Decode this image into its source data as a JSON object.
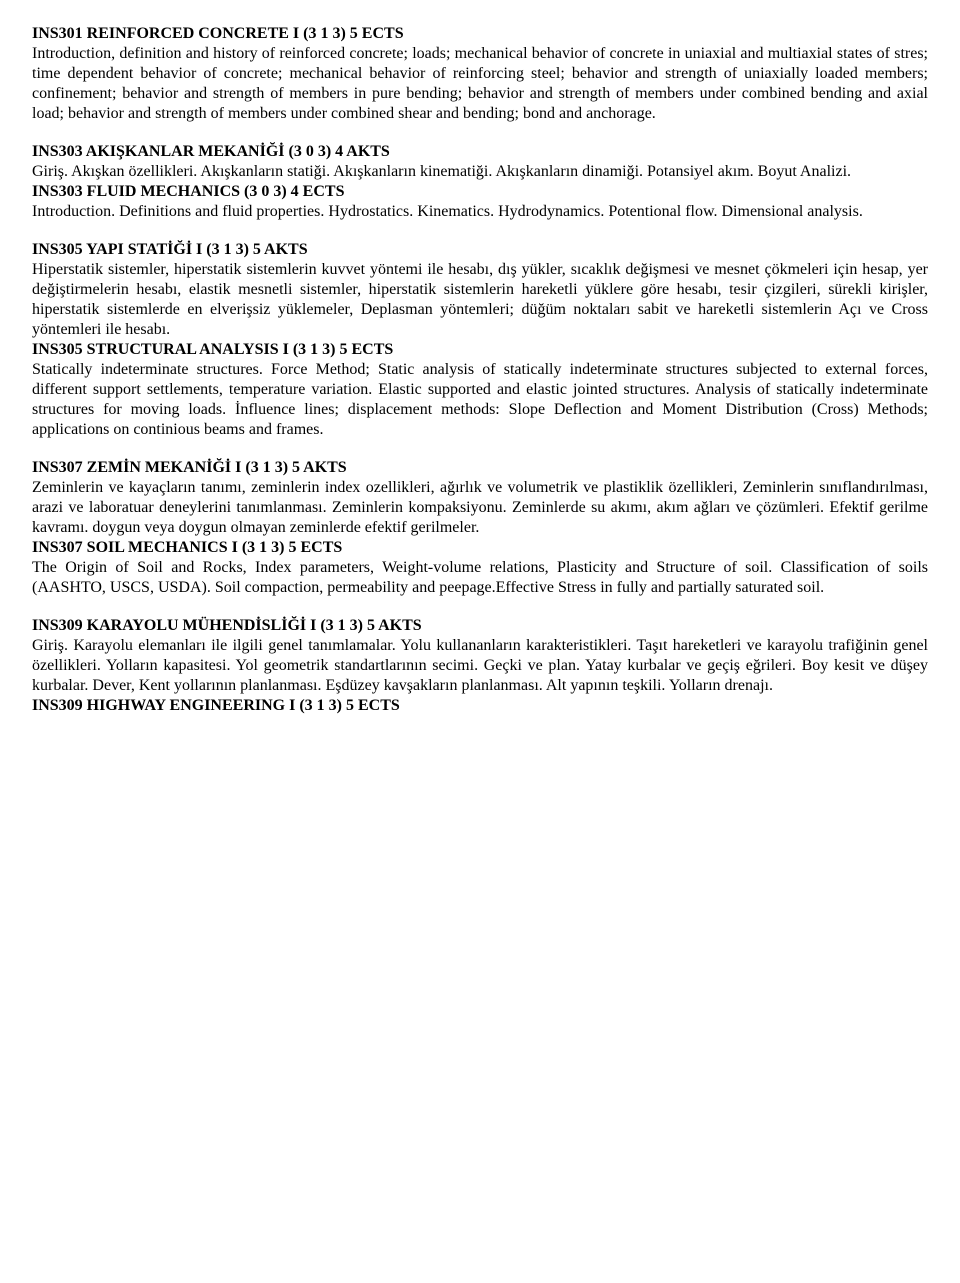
{
  "sections": [
    {
      "blocks": [
        {
          "type": "heading",
          "text": "INS301 REINFORCED CONCRETE I (3  1  3) 5 ECTS"
        },
        {
          "type": "para",
          "text": "Introduction, definition and history of reinforced concrete; loads; mechanical behavior of concrete in uniaxial and multiaxial states of stres; time dependent behavior of concrete; mechanical behavior of reinforcing steel; behavior and strength of uniaxially loaded members; confinement; behavior and strength of members in pure bending; behavior and strength of members under combined bending and axial load; behavior and strength of members under combined shear and bending; bond and anchorage."
        }
      ]
    },
    {
      "blocks": [
        {
          "type": "heading",
          "text": "INS303 AKIŞKANLAR MEKANİĞİ (3  0  3) 4 AKTS"
        },
        {
          "type": "para",
          "text": "Giriş. Akışkan özellikleri. Akışkanların statiği. Akışkanların kinematiği. Akışkanların dinamiği. Potansiyel akım. Boyut Analizi."
        },
        {
          "type": "heading",
          "text": "INS303 FLUID MECHANICS (3  0  3) 4 ECTS"
        },
        {
          "type": "para",
          "text": "Introduction. Definitions and fluid properties. Hydrostatics. Kinematics. Hydrodynamics. Potentional flow. Dimensional analysis."
        }
      ]
    },
    {
      "blocks": [
        {
          "type": "heading",
          "text": "INS305 YAPI STATİĞİ I (3  1  3) 5 AKTS"
        },
        {
          "type": "para",
          "text": "Hiperstatik sistemler, hiperstatik sistemlerin kuvvet yöntemi ile hesabı, dış yükler, sıcaklık değişmesi ve mesnet çökmeleri için hesap, yer değiştirmelerin hesabı, elastik mesnetli sistemler, hiperstatik sistemlerin hareketli yüklere göre hesabı, tesir çizgileri, sürekli kirişler, hiperstatik sistemlerde en elverişsiz yüklemeler, Deplasman yöntemleri; düğüm noktaları sabit ve hareketli sistemlerin Açı ve Cross yöntemleri ile hesabı."
        },
        {
          "type": "heading",
          "text": "INS305 STRUCTURAL ANALYSIS I (3  1  3) 5 ECTS"
        },
        {
          "type": "para",
          "text": "Statically indeterminate structures. Force Method; Static analysis of statically indeterminate structures subjected to external forces, different support settlements, temperature variation. Elastic supported and elastic jointed structures. Analysis of statically indeterminate structures for moving loads. İnfluence lines; displacement methods: Slope Deflection and Moment Distribution (Cross) Methods; applications on continious beams and frames."
        }
      ]
    },
    {
      "blocks": [
        {
          "type": "heading",
          "text": "INS307 ZEMİN MEKANİĞİ I (3  1  3) 5 AKTS"
        },
        {
          "type": "para",
          "text": "Zeminlerin ve kayaçların tanımı, zeminlerin index ozellikleri, ağırlık ve volumetrik ve plastiklik özellikleri, Zeminlerin sınıflandırılması, arazi ve laboratuar deneylerini tanımlanması. Zeminlerin kompaksiyonu. Zeminlerde su akımı, akım ağları ve çözümleri. Efektif gerilme kavramı. doygun  veya doygun olmayan zeminlerde efektif gerilmeler."
        },
        {
          "type": "heading",
          "text": "INS307 SOIL MECHANICS I (3  1  3) 5 ECTS"
        },
        {
          "type": "para",
          "text": "The Origin of Soil and Rocks, Index parameters, Weight-volume relations, Plasticity and Structure of soil. Classification of soils (AASHTO, USCS, USDA). Soil compaction, permeability and peepage.Effective Stress in fully and partially saturated soil."
        }
      ]
    },
    {
      "blocks": [
        {
          "type": "heading",
          "text": "INS309 KARAYOLU MÜHENDİSLİĞİ I (3  1  3) 5 AKTS"
        },
        {
          "type": "para",
          "text": "Giriş. Karayolu elemanları ile ilgili genel tanımlamalar. Yolu kullananların karakteristikleri. Taşıt hareketleri ve karayolu trafiğinin genel özellikleri. Yolların kapasitesi. Yol geometrik standartlarının secimi. Geçki ve plan. Yatay kurbalar ve geçiş eğrileri. Boy kesit ve düşey kurbalar. Dever, Kent yollarının planlanması. Eşdüzey kavşakların planlanması. Alt yapının teşkili. Yolların drenajı."
        },
        {
          "type": "heading",
          "text": "INS309 HIGHWAY ENGINEERING I (3  1  3) 5 ECTS"
        }
      ]
    }
  ]
}
